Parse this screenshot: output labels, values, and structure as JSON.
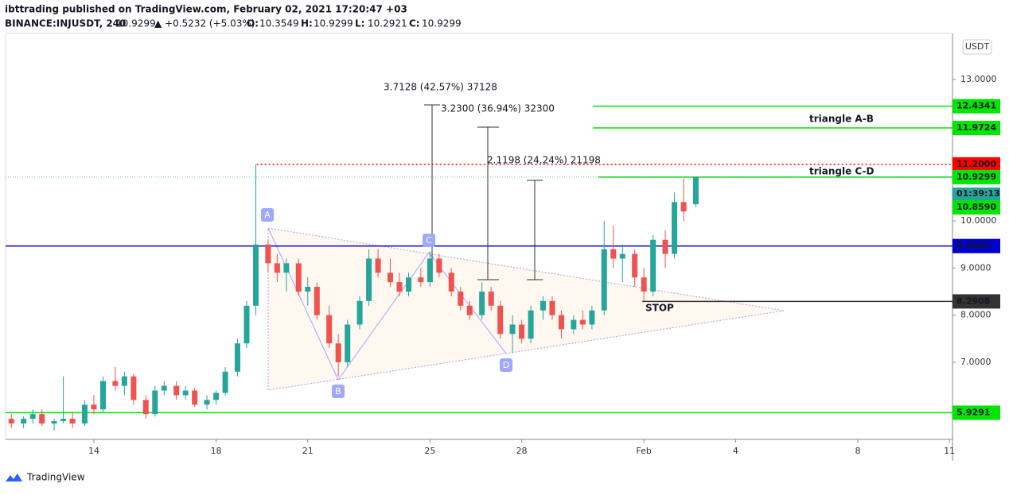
{
  "header": {
    "publisher": "ibttrading published on TradingView.com, February 02, 2021 17:20:47 +03",
    "symbol": "BINANCE:INJUSDT, 240",
    "last": "10.9299",
    "change": "▲ +0.5232 (+5.03%)",
    "ohlc": [
      {
        "key": "O:",
        "val": "10.3549"
      },
      {
        "key": "H:",
        "val": "10.9299"
      },
      {
        "key": "L:",
        "val": "10.2921"
      },
      {
        "key": "C:",
        "val": "10.9299"
      }
    ]
  },
  "chart_data": {
    "type": "candlestick",
    "currency": "USDT",
    "xlim": [
      11.11,
      42.1
    ],
    "ylim": [
      5.363,
      13.98
    ],
    "xticks": [
      14,
      18,
      21,
      25,
      28,
      {
        "value": 32,
        "label": "Feb"
      },
      {
        "value": 35,
        "label": "4"
      },
      {
        "value": 39,
        "label": "8"
      },
      {
        "value": 42,
        "label": "11"
      }
    ],
    "yticks": [
      {
        "value": 13,
        "label": "13.0000"
      },
      {
        "value": 10,
        "label": "10.0000"
      },
      {
        "value": 9,
        "label": "9.0000"
      },
      {
        "value": 8,
        "label": "8.0000"
      },
      {
        "value": 7,
        "label": "7.0000"
      }
    ],
    "up_color": "#26a69a",
    "down_color": "#ef5350",
    "x": [
      11.3,
      11.7,
      12.0,
      12.3,
      12.7,
      13.0,
      13.3,
      13.7,
      14.0,
      14.3,
      14.7,
      15.0,
      15.3,
      15.7,
      16.0,
      16.3,
      16.7,
      17.0,
      17.3,
      17.7,
      18.0,
      18.3,
      18.7,
      19.0,
      19.3,
      19.7,
      20.0,
      20.3,
      20.7,
      21.0,
      21.3,
      21.7,
      22.0,
      22.3,
      22.7,
      23.0,
      23.3,
      23.7,
      24.0,
      24.3,
      24.7,
      25.0,
      25.3,
      25.7,
      26.0,
      26.3,
      26.7,
      27.0,
      27.3,
      27.7,
      28.0,
      28.3,
      28.7,
      29.0,
      29.3,
      29.7,
      30.0,
      30.3,
      30.7,
      31.0,
      31.3,
      31.7,
      32.0,
      32.3,
      32.7,
      33.0,
      33.3,
      33.7
    ],
    "open": [
      5.8,
      5.7,
      5.8,
      5.9,
      5.7,
      5.75,
      5.8,
      5.7,
      6.1,
      6.0,
      6.6,
      6.5,
      6.7,
      6.2,
      5.9,
      6.4,
      6.5,
      6.3,
      6.4,
      6.1,
      6.2,
      6.35,
      6.8,
      7.4,
      8.2,
      9.5,
      9.1,
      8.9,
      9.1,
      8.5,
      8.6,
      8.0,
      7.4,
      7.0,
      7.8,
      8.3,
      9.2,
      8.9,
      8.7,
      8.5,
      8.8,
      8.7,
      9.2,
      8.9,
      8.5,
      8.2,
      8.0,
      8.5,
      8.2,
      7.6,
      7.8,
      7.5,
      8.1,
      8.3,
      8.0,
      7.7,
      7.9,
      7.8,
      8.1,
      9.4,
      9.2,
      9.3,
      8.8,
      8.5,
      9.6,
      9.3,
      10.4,
      10.3549
    ],
    "high": [
      5.9,
      5.85,
      6.0,
      6.0,
      5.8,
      6.7,
      5.95,
      6.2,
      6.3,
      6.7,
      6.9,
      6.8,
      6.75,
      6.3,
      6.5,
      6.6,
      6.6,
      6.5,
      6.45,
      6.3,
      6.4,
      6.9,
      7.5,
      8.3,
      11.2,
      9.6,
      9.3,
      9.2,
      9.2,
      8.8,
      8.7,
      8.2,
      7.6,
      7.9,
      8.4,
      9.4,
      9.4,
      9.2,
      8.9,
      8.9,
      9.0,
      9.35,
      9.3,
      9.0,
      8.6,
      8.3,
      8.7,
      8.6,
      8.3,
      8.0,
      7.9,
      8.2,
      8.4,
      8.4,
      8.1,
      8.0,
      8.1,
      8.2,
      10.0,
      9.9,
      9.5,
      9.4,
      9.0,
      9.7,
      9.8,
      10.6,
      10.9,
      10.9299
    ],
    "low": [
      5.6,
      5.6,
      5.7,
      5.65,
      5.55,
      5.7,
      5.6,
      5.65,
      5.9,
      5.95,
      6.4,
      6.3,
      6.1,
      5.8,
      5.85,
      6.3,
      6.2,
      6.2,
      6.05,
      6.0,
      6.1,
      6.3,
      6.7,
      7.3,
      8.0,
      8.9,
      8.7,
      8.5,
      8.4,
      8.2,
      7.9,
      7.3,
      6.7,
      6.9,
      7.7,
      8.2,
      8.8,
      8.6,
      8.4,
      8.4,
      8.6,
      8.6,
      8.8,
      8.4,
      8.1,
      7.9,
      7.9,
      8.1,
      7.5,
      7.2,
      7.4,
      7.4,
      7.9,
      7.9,
      7.5,
      7.6,
      7.7,
      7.7,
      8.0,
      9.0,
      8.7,
      8.6,
      8.3,
      8.4,
      9.0,
      9.2,
      10.0,
      10.2921
    ],
    "close": [
      5.7,
      5.8,
      5.9,
      5.7,
      5.75,
      5.8,
      5.7,
      6.1,
      6.0,
      6.6,
      6.5,
      6.7,
      6.2,
      5.9,
      6.4,
      6.5,
      6.3,
      6.4,
      6.1,
      6.2,
      6.35,
      6.8,
      7.4,
      8.2,
      9.5,
      9.1,
      8.9,
      9.1,
      8.5,
      8.6,
      8.0,
      7.4,
      7.0,
      7.8,
      8.3,
      9.2,
      8.9,
      8.7,
      8.5,
      8.8,
      8.7,
      9.2,
      8.9,
      8.5,
      8.2,
      8.0,
      8.5,
      8.2,
      7.6,
      7.8,
      7.5,
      8.1,
      8.3,
      8.0,
      7.7,
      7.9,
      7.8,
      8.1,
      9.4,
      9.2,
      9.3,
      8.8,
      8.5,
      9.6,
      9.3,
      10.4,
      10.2,
      10.9299
    ],
    "levels": [
      {
        "price": 12.4341,
        "color": "#00e600",
        "text_color": "#000000",
        "style": "solid",
        "from_x": 30.33
      },
      {
        "price": 11.9724,
        "color": "#00e600",
        "text_color": "#000000",
        "style": "solid",
        "from_x": 30.33
      },
      {
        "price": {
          "value": 11.2,
          "label": "11.2000"
        },
        "color": "#ff0000",
        "text_color": "#ffffff",
        "style": "dotted",
        "from_x": 19.33
      },
      {
        "price": 10.9299,
        "color": "#00e600",
        "text_color": "#000000",
        "style": "solid",
        "from_x": 30.5
      },
      {
        "price": 9.4665,
        "color": "#0000cc",
        "text_color": "#ffffff",
        "style": "solid",
        "from_x": 11.11
      },
      {
        "price": 8.2908,
        "color": "#333333",
        "text_color": "#ffffff",
        "style": "solid",
        "from_x": 31.95
      },
      {
        "price": 5.9291,
        "color": "#00e600",
        "text_color": "#000000",
        "style": "solid",
        "from_x": 11.11
      }
    ],
    "countdown": "01:39:13",
    "prev_label": "10.8590",
    "annotations": {
      "a": "A",
      "b": "B",
      "c": "C",
      "d": "D",
      "tri_ab": "triangle A-B",
      "tri_cd": "triangle C-D",
      "stop": "STOP",
      "m1": "3.7128 (42.57%) 37128",
      "m2": "3.2300 (36.94%) 32300",
      "m3": "2.1198 (24.24%) 21198"
    }
  },
  "footer": {
    "brand": "TradingView"
  }
}
